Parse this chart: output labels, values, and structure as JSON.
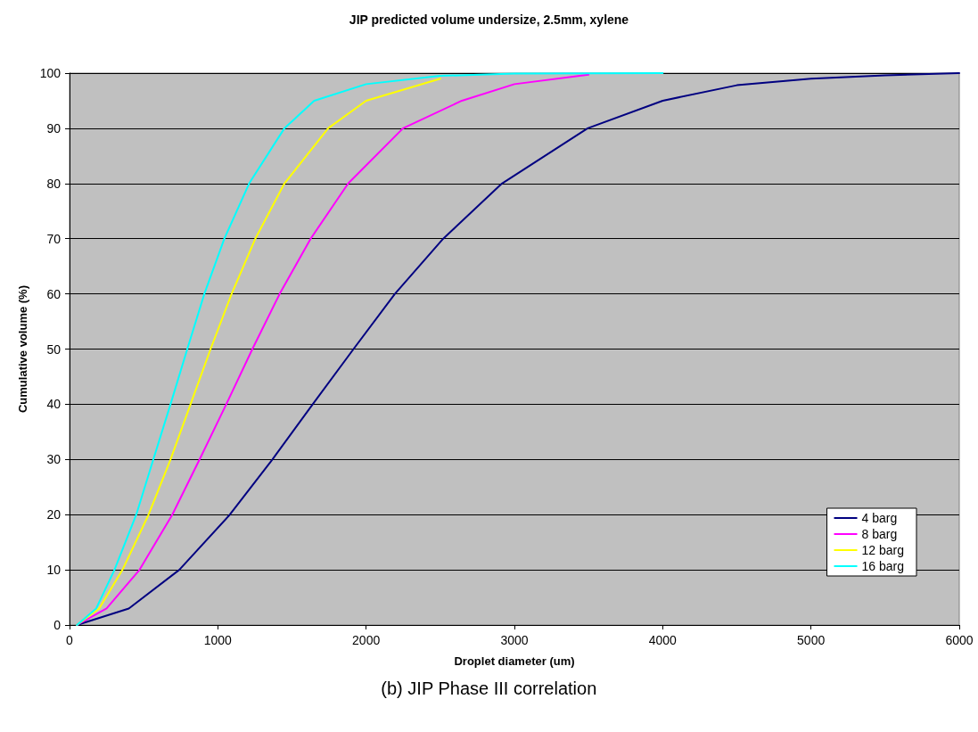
{
  "chart_data": {
    "type": "line",
    "title": "JIP predicted volume undersize, 2.5mm, xylene",
    "xlabel": "Droplet diameter (um)",
    "ylabel": "Cumulative volume (%)",
    "annotations": [
      "(b) JIP Phase III correlation"
    ],
    "series": [
      {
        "name": "4 barg",
        "color": "#000080",
        "x": [
          50,
          400,
          740,
          1081,
          1368,
          1640,
          1915,
          2194,
          2520,
          2916,
          3494,
          4000,
          4500,
          5000,
          5500,
          6000
        ],
        "values": [
          0,
          3,
          10,
          20,
          30,
          40,
          50,
          60,
          70,
          80,
          90,
          95,
          97.8,
          99,
          99.6,
          100
        ]
      },
      {
        "name": "8 barg",
        "color": "#ff00ff",
        "x": [
          50,
          250,
          472,
          693,
          877,
          1057,
          1233,
          1417,
          1626,
          1879,
          2249,
          2646,
          3000,
          3500
        ],
        "values": [
          0,
          3,
          10,
          20,
          30,
          40,
          50,
          60,
          70,
          80,
          90,
          95,
          98,
          99.7
        ]
      },
      {
        "name": "12 barg",
        "color": "#ffff00",
        "x": [
          50,
          200,
          357,
          533,
          681,
          816,
          951,
          1093,
          1253,
          1449,
          1744,
          2000,
          2500
        ],
        "values": [
          0,
          3,
          10,
          20,
          30,
          40,
          50,
          60,
          70,
          80,
          90,
          95,
          99
        ]
      },
      {
        "name": "16 barg",
        "color": "#00ffff",
        "x": [
          50,
          180,
          303,
          450,
          565,
          681,
          794,
          909,
          1044,
          1211,
          1449,
          1650,
          2000,
          2500,
          3000,
          4000
        ],
        "values": [
          0,
          3,
          10,
          20,
          30,
          40,
          50,
          60,
          70,
          80,
          90,
          95,
          98,
          99.5,
          99.9,
          100
        ]
      }
    ],
    "xlim": [
      0,
      6000
    ],
    "xticks": [
      0,
      1000,
      2000,
      3000,
      4000,
      5000,
      6000
    ],
    "ylim": [
      0,
      100
    ],
    "yticks": [
      0,
      10,
      20,
      30,
      40,
      50,
      60,
      70,
      80,
      90,
      100
    ],
    "grid": "y",
    "legend": "bottom right",
    "marker": "none",
    "line_style": "solid"
  }
}
